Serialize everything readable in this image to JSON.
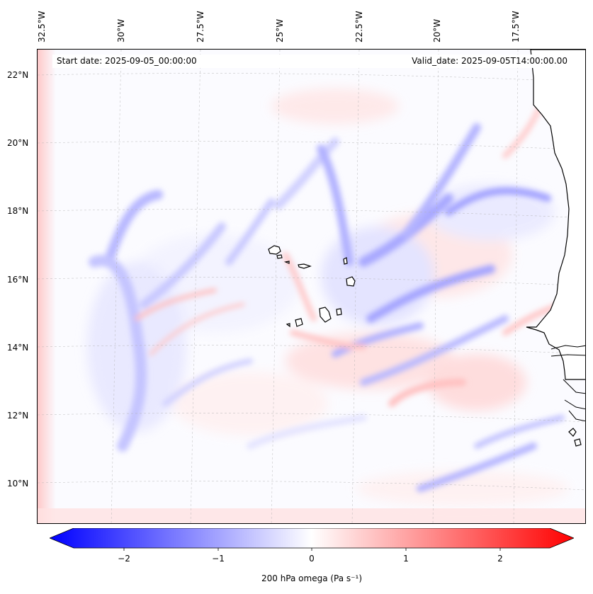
{
  "map": {
    "start_date": "Start date: 2025-09-05_00:00:00",
    "valid_date": "Valid_date: 2025-09-05T14:00:00.00",
    "lon_labels": [
      "32.5°W",
      "30°W",
      "27.5°W",
      "25°W",
      "22.5°W",
      "20°W",
      "17.5°W"
    ],
    "lat_labels": [
      "22°N",
      "20°N",
      "18°N",
      "16°N",
      "14°N",
      "12°N",
      "10°N"
    ],
    "region": "Cape Verde Islands and West African coast (Senegal, Gambia, Guinea-Bissau)"
  },
  "colorbar": {
    "ticks": [
      "−2",
      "−1",
      "0",
      "1",
      "2"
    ],
    "label": "200 hPa omega (Pa s⁻¹)",
    "min_color": "#0000ff",
    "mid_color": "#ffffff",
    "max_color": "#ff0000"
  }
}
